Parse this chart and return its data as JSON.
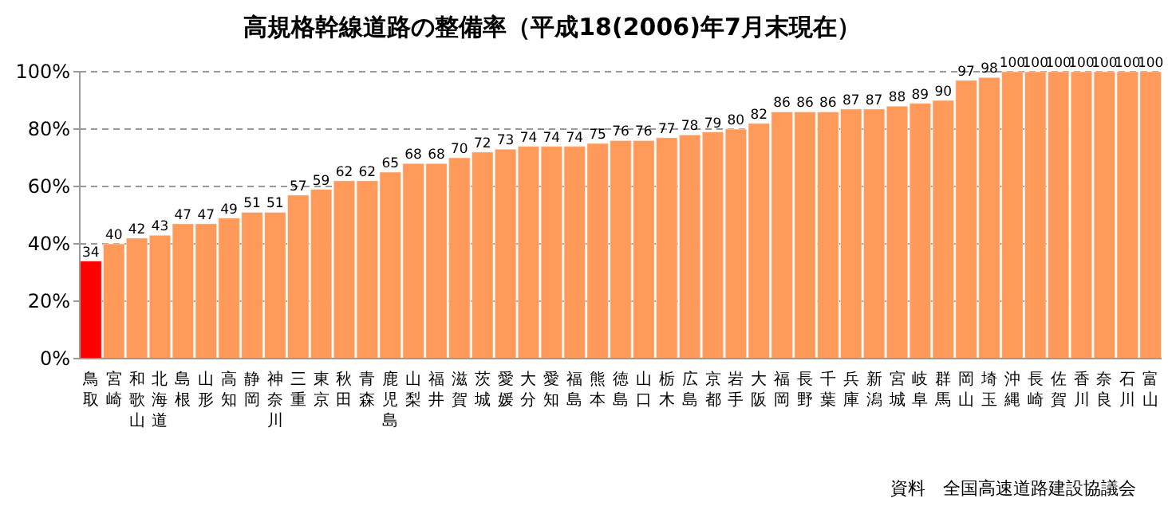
{
  "chart_data": {
    "type": "bar",
    "title": "高規格幹線道路の整備率（平成18(2006)年7月末現在）",
    "categories": [
      "鳥取",
      "宮崎",
      "和歌山",
      "北海道",
      "島根",
      "山形",
      "高知",
      "静岡",
      "神奈川",
      "三重",
      "東京",
      "秋田",
      "青森",
      "鹿児島",
      "山梨",
      "福井",
      "滋賀",
      "茨城",
      "愛媛",
      "大分",
      "愛知",
      "福島",
      "熊本",
      "徳島",
      "山口",
      "栃木",
      "広島",
      "京都",
      "岩手",
      "大阪",
      "福岡",
      "長野",
      "千葉",
      "兵庫",
      "新潟",
      "宮城",
      "岐阜",
      "群馬",
      "岡山",
      "埼玉",
      "沖縄",
      "長崎",
      "佐賀",
      "香川",
      "奈良",
      "石川",
      "富山"
    ],
    "values": [
      34,
      40,
      42,
      43,
      47,
      47,
      49,
      51,
      51,
      57,
      59,
      62,
      62,
      65,
      68,
      68,
      70,
      72,
      73,
      74,
      74,
      74,
      75,
      76,
      76,
      77,
      78,
      79,
      80,
      82,
      86,
      86,
      86,
      87,
      87,
      88,
      89,
      90,
      97,
      98,
      100,
      100,
      100,
      100,
      100,
      100,
      100
    ],
    "colors": [
      "#ff0000",
      "#ff9a5a",
      "#ff9a5a",
      "#ff9a5a",
      "#ff9a5a",
      "#ff9a5a",
      "#ff9a5a",
      "#ff9a5a",
      "#ff9a5a",
      "#ff9a5a",
      "#ff9a5a",
      "#ff9a5a",
      "#ff9a5a",
      "#ff9a5a",
      "#ff9a5a",
      "#ff9a5a",
      "#ff9a5a",
      "#ff9a5a",
      "#ff9a5a",
      "#ff9a5a",
      "#ff9a5a",
      "#ff9a5a",
      "#ff9a5a",
      "#ff9a5a",
      "#ff9a5a",
      "#ff9a5a",
      "#ff9a5a",
      "#ff9a5a",
      "#ff9a5a",
      "#ff9a5a",
      "#ff9a5a",
      "#ff9a5a",
      "#ff9a5a",
      "#ff9a5a",
      "#ff9a5a",
      "#ff9a5a",
      "#ff9a5a",
      "#ff9a5a",
      "#ff9a5a",
      "#ff9a5a",
      "#ff9a5a",
      "#ff9a5a",
      "#ff9a5a",
      "#ff9a5a",
      "#ff9a5a",
      "#ff9a5a",
      "#ff9a5a"
    ],
    "ylim": [
      0,
      100
    ],
    "yticks": [
      {
        "value": 0,
        "label": "0%"
      },
      {
        "value": 20,
        "label": "20%"
      },
      {
        "value": 40,
        "label": "40%"
      },
      {
        "value": 60,
        "label": "60%"
      },
      {
        "value": 80,
        "label": "80%"
      },
      {
        "value": 100,
        "label": "100%"
      }
    ],
    "grid": "y",
    "data_labels": true,
    "annotations": [
      "資料　全国高速道路建設協議会"
    ]
  }
}
